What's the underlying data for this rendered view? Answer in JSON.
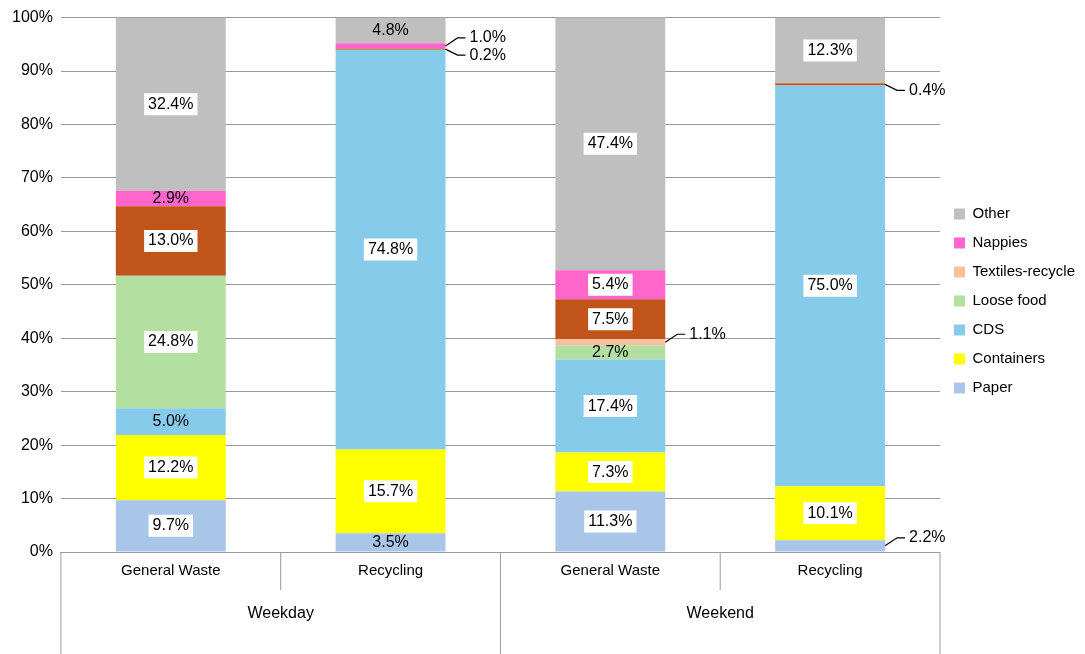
{
  "chart_data": {
    "type": "bar",
    "stacked": true,
    "categories": [
      "General Waste",
      "Recycling",
      "General Waste",
      "Recycling"
    ],
    "annotations": [
      "Weekday",
      "Weekend"
    ],
    "series": [
      {
        "name": "Paper",
        "color": "#a9c6e8",
        "values": [
          9.7,
          3.5,
          11.3,
          2.2
        ],
        "value_labels": [
          "9.7%",
          "3.5%",
          "11.3%",
          "2.2%"
        ]
      },
      {
        "name": "Containers",
        "color": "#ffff00",
        "values": [
          12.2,
          15.7,
          7.3,
          10.1
        ],
        "value_labels": [
          "12.2%",
          "15.7%",
          "7.3%",
          "10.1%"
        ]
      },
      {
        "name": "CDS",
        "color": "#87cbea",
        "values": [
          5.0,
          74.8,
          17.4,
          75.0
        ],
        "value_labels": [
          "5.0%",
          "74.8%",
          "17.4%",
          "75.0%"
        ]
      },
      {
        "name": "Loose food",
        "color": "#b3e0a0",
        "values": [
          24.8,
          null,
          2.7,
          null
        ],
        "value_labels": [
          "24.8%",
          null,
          "2.7%",
          null
        ]
      },
      {
        "name": "Textiles-recycle",
        "color": "#f8c0a0",
        "values": [
          null,
          null,
          1.1,
          null
        ],
        "value_labels": [
          null,
          null,
          "1.1%",
          null
        ]
      },
      {
        "color": "#c0541a",
        "values": [
          13.0,
          0.2,
          7.5,
          0.4
        ],
        "value_labels": [
          "13.0%",
          "0.2%",
          "7.5%",
          "0.4%"
        ]
      },
      {
        "name": "Nappies",
        "color": "#ff66cc",
        "values": [
          2.9,
          1.0,
          5.4,
          null
        ],
        "value_labels": [
          "2.9%",
          "1.0%",
          "5.4%",
          null
        ]
      },
      {
        "name": "Other",
        "color": "#bfbfbf",
        "values": [
          32.4,
          4.8,
          47.4,
          12.3
        ],
        "value_labels": [
          "32.4%",
          "4.8%",
          "47.4%",
          "12.3%"
        ]
      }
    ],
    "ylim": [
      0,
      100
    ],
    "yticks": [
      {
        "value": 0,
        "label": "0%"
      },
      {
        "value": 10,
        "label": "10%"
      },
      {
        "value": 20,
        "label": "20%"
      },
      {
        "value": 30,
        "label": "30%"
      },
      {
        "value": 40,
        "label": "40%"
      },
      {
        "value": 50,
        "label": "50%"
      },
      {
        "value": 60,
        "label": "60%"
      },
      {
        "value": 70,
        "label": "70%"
      },
      {
        "value": 80,
        "label": "80%"
      },
      {
        "value": 90,
        "label": "90%"
      },
      {
        "value": 100,
        "label": "100%"
      }
    ],
    "grid": "y",
    "legend": "right"
  }
}
